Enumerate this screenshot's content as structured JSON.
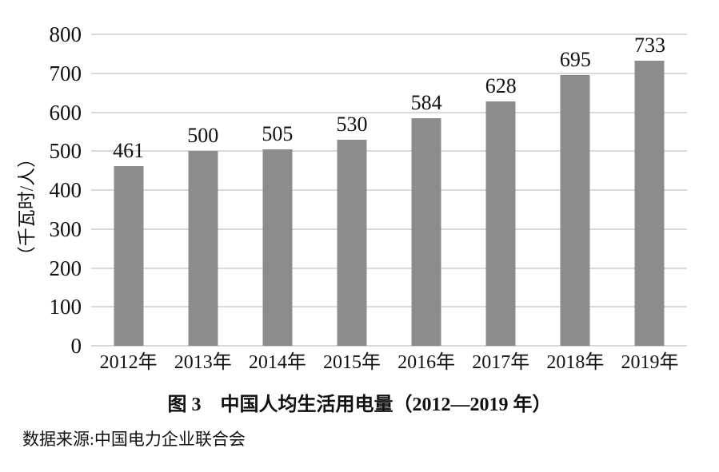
{
  "figure": {
    "caption": "图 3　中国人均生活用电量（2012—2019 年）",
    "source": "数据来源:中国电力企业联合会"
  },
  "chart_data": {
    "type": "bar",
    "categories": [
      "2012年",
      "2013年",
      "2014年",
      "2015年",
      "2016年",
      "2017年",
      "2018年",
      "2019年"
    ],
    "values": [
      461,
      500,
      505,
      530,
      584,
      628,
      695,
      733
    ],
    "title": "图 3　中国人均生活用电量（2012—2019 年）",
    "xlabel": "",
    "ylabel": "（千瓦时/人）",
    "ylim": [
      0,
      800
    ],
    "ytick_interval": 100,
    "yticks": [
      0,
      100,
      200,
      300,
      400,
      500,
      600,
      700,
      800
    ],
    "grid": true,
    "legend": "none",
    "bar_color": "#8c8c8c",
    "gridline_color": "#d9d9d9",
    "text_color": "#111111",
    "background_color": "#ffffff"
  }
}
